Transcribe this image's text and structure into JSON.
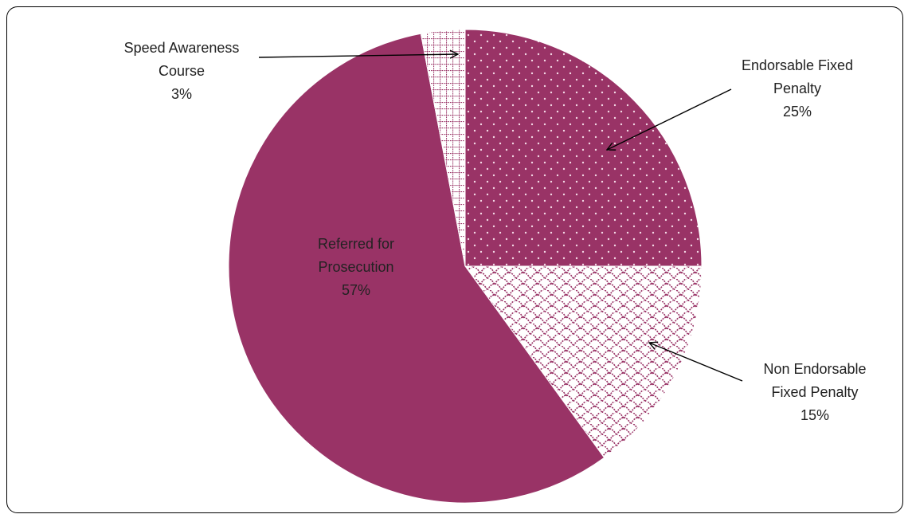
{
  "chart_data": {
    "type": "pie",
    "title": "",
    "start_angle_deg": 0,
    "direction": "clockwise",
    "slices": [
      {
        "label_lines": [
          "Endorsable Fixed",
          "Penalty"
        ],
        "pct_label": "25%",
        "value": 25,
        "color": "#993366",
        "pattern": "dots"
      },
      {
        "label_lines": [
          "Non Endorsable",
          "Fixed Penalty"
        ],
        "pct_label": "15%",
        "value": 15,
        "color": "#993366",
        "pattern": "scales"
      },
      {
        "label_lines": [
          "Referred for",
          "Prosecution"
        ],
        "pct_label": "57%",
        "value": 57,
        "color": "#993366",
        "pattern": "solid"
      },
      {
        "label_lines": [
          "Speed Awareness",
          "Course"
        ],
        "pct_label": "3%",
        "value": 3,
        "color": "#993366",
        "pattern": "grid"
      }
    ]
  }
}
